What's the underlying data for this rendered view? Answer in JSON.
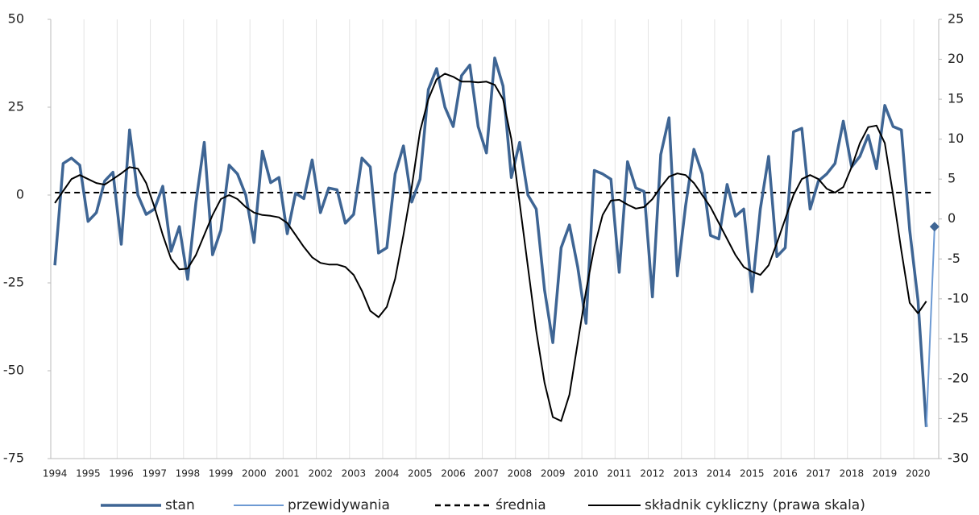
{
  "chart_data": {
    "type": "line",
    "categories": [
      "1994",
      null,
      null,
      null,
      "1995",
      null,
      null,
      null,
      "1996",
      null,
      null,
      null,
      "1997",
      null,
      null,
      null,
      "1998",
      null,
      null,
      null,
      "1999",
      null,
      null,
      null,
      "2000",
      null,
      null,
      null,
      "2001",
      null,
      null,
      null,
      "2002",
      null,
      null,
      null,
      "2003",
      null,
      null,
      null,
      "2004",
      null,
      null,
      null,
      "2005",
      null,
      null,
      null,
      "2006",
      null,
      null,
      null,
      "2007",
      null,
      null,
      null,
      "2008",
      null,
      null,
      null,
      "2009",
      null,
      null,
      null,
      "2010",
      null,
      null,
      null,
      "2011",
      null,
      null,
      null,
      "2012",
      null,
      null,
      null,
      "2013",
      null,
      null,
      null,
      "2014",
      null,
      null,
      null,
      "2015",
      null,
      null,
      null,
      "2016",
      null,
      null,
      null,
      "2017",
      null,
      null,
      null,
      "2018",
      null,
      null,
      null,
      "2019",
      null,
      null,
      null,
      "2020",
      null,
      null
    ],
    "series": [
      {
        "name": "stan",
        "color": "#3e6594",
        "width": 3.5,
        "values": [
          -20,
          9,
          10.5,
          8.5,
          -7.5,
          -5,
          4,
          6.5,
          -14,
          18.5,
          0,
          -5.5,
          -4,
          2.5,
          -16,
          -9,
          -24,
          -2,
          15,
          -17,
          -10,
          8.5,
          6,
          0,
          -13.5,
          12.5,
          3.5,
          5,
          -11,
          0.5,
          -1,
          10,
          -5,
          2,
          1.5,
          -8,
          -5.5,
          10.5,
          8,
          -16.5,
          -15,
          6,
          14,
          -2,
          4.5,
          30,
          36,
          25,
          19.5,
          34,
          37,
          19.5,
          12,
          39,
          31,
          5,
          15,
          0,
          -4,
          -27,
          -42,
          -15,
          -8.5,
          -20.5,
          -36.5,
          7,
          6,
          4.5,
          -22,
          9.5,
          2,
          1,
          -29,
          11.5,
          22,
          -23,
          -3,
          13,
          6,
          -11.5,
          -12.5,
          3,
          -6,
          -4,
          -27.5,
          -4,
          11,
          -17.5,
          -15,
          18,
          19,
          -4,
          4,
          6,
          9,
          21,
          8,
          11,
          17,
          7.5,
          25.5,
          19.5,
          18.5,
          -10,
          -30,
          -66,
          null
        ]
      },
      {
        "name": "przewidywania",
        "color": "#6d9ad3",
        "width": 2,
        "marker": "diamond",
        "values": [
          null,
          null,
          null,
          null,
          null,
          null,
          null,
          null,
          null,
          null,
          null,
          null,
          null,
          null,
          null,
          null,
          null,
          null,
          null,
          null,
          null,
          null,
          null,
          null,
          null,
          null,
          null,
          null,
          null,
          null,
          null,
          null,
          null,
          null,
          null,
          null,
          null,
          null,
          null,
          null,
          null,
          null,
          null,
          null,
          null,
          null,
          null,
          null,
          null,
          null,
          null,
          null,
          null,
          null,
          null,
          null,
          null,
          null,
          null,
          null,
          null,
          null,
          null,
          null,
          null,
          null,
          null,
          null,
          null,
          null,
          null,
          null,
          null,
          null,
          null,
          null,
          null,
          null,
          null,
          null,
          null,
          null,
          null,
          null,
          null,
          null,
          null,
          null,
          null,
          null,
          null,
          null,
          null,
          null,
          null,
          null,
          null,
          null,
          null,
          null,
          null,
          null,
          null,
          null,
          null,
          -66,
          -9
        ]
      },
      {
        "name": "składnik cykliczny (prawa skala)",
        "color": "#000000",
        "width": 2,
        "axis": "y2",
        "values": [
          2,
          3.5,
          5,
          5.5,
          5,
          4.5,
          4.3,
          5,
          5.7,
          6.5,
          6.3,
          4.5,
          1.5,
          -2,
          -5,
          -6.3,
          -6.2,
          -4.5,
          -2,
          0.5,
          2.5,
          3,
          2.5,
          1.5,
          0.8,
          0.5,
          0.4,
          0.2,
          -0.5,
          -2,
          -3.5,
          -4.8,
          -5.5,
          -5.7,
          -5.7,
          -6,
          -7,
          -9,
          -11.5,
          -12.3,
          -11,
          -7.5,
          -2,
          4,
          11,
          15,
          17.5,
          18.2,
          17.8,
          17.2,
          17.2,
          17.1,
          17.2,
          16.8,
          15,
          10,
          2,
          -6,
          -14,
          -20.5,
          -24.8,
          -25.3,
          -22,
          -15.5,
          -9,
          -3.5,
          0.5,
          2.3,
          2.4,
          1.8,
          1.3,
          1.5,
          2.5,
          4,
          5.3,
          5.7,
          5.5,
          4.5,
          3,
          1.5,
          -0.5,
          -2.5,
          -4.5,
          -6,
          -6.6,
          -7,
          -5.8,
          -3,
          0,
          3,
          5,
          5.5,
          5,
          3.8,
          3.3,
          4,
          6.5,
          9.5,
          11.5,
          11.7,
          9.5,
          3,
          -4,
          -10.5,
          -11.8,
          -10.3,
          null
        ]
      }
    ],
    "reference_lines": [
      {
        "name": "średnia",
        "value": 0.7,
        "color": "#000000",
        "style": "dashed"
      }
    ],
    "ylim": [
      -75,
      50
    ],
    "yticks": [
      -75,
      -50,
      -25,
      0,
      25,
      50
    ],
    "y2lim": [
      -30,
      25
    ],
    "y2ticks": [
      -30,
      -25,
      -20,
      -15,
      -10,
      -5,
      0,
      5,
      10,
      15,
      20,
      25
    ],
    "grid": "x"
  }
}
